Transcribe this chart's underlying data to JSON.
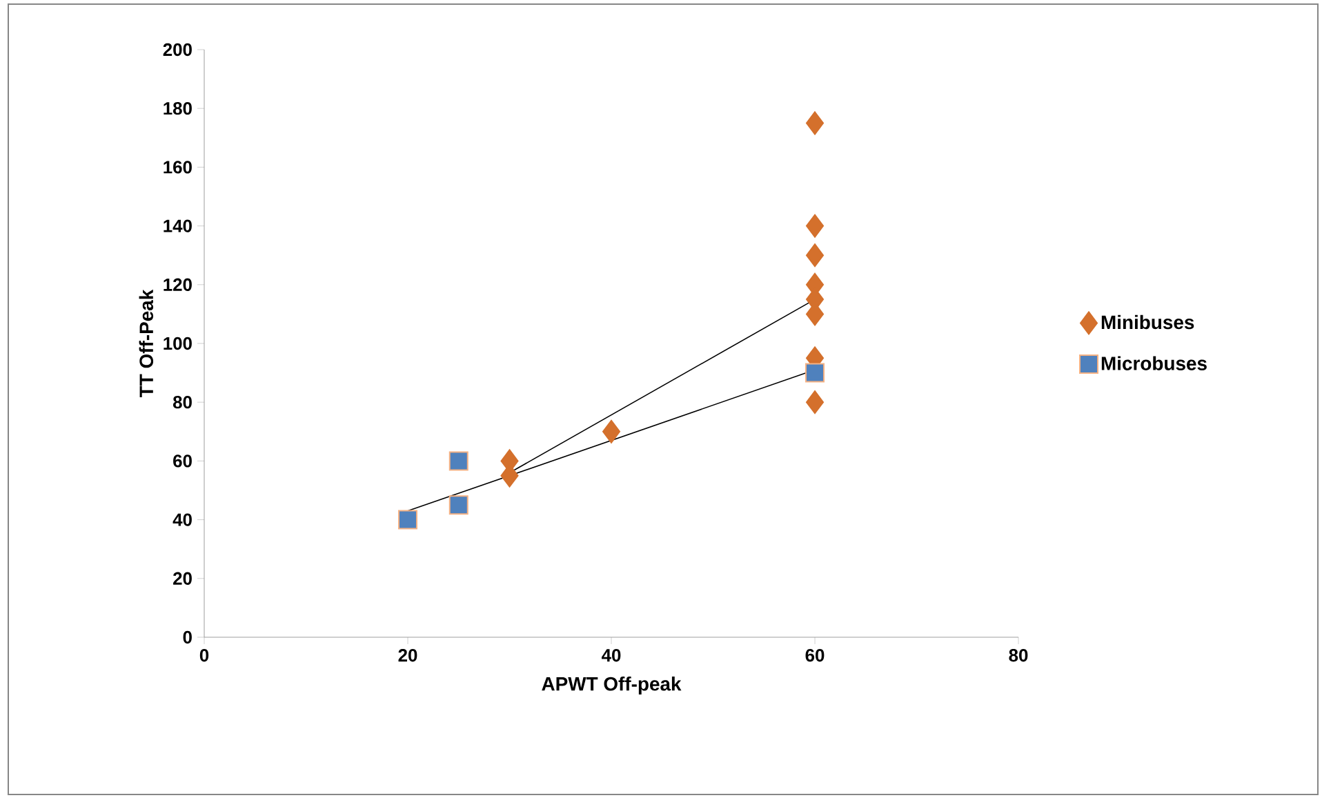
{
  "chart_data": {
    "type": "scatter",
    "xlabel": "APWT Off-peak",
    "ylabel": "TT Off-Peak",
    "xlim": [
      0,
      80
    ],
    "ylim": [
      0,
      200
    ],
    "xticks": [
      0,
      20,
      40,
      60,
      80
    ],
    "yticks": [
      0,
      20,
      40,
      60,
      80,
      100,
      120,
      140,
      160,
      180,
      200
    ],
    "grid": false,
    "legend": "right",
    "series": [
      {
        "name": "Minibuses",
        "color": "#d4702c",
        "marker": "diamond",
        "x": [
          60,
          60,
          60,
          60,
          60,
          60,
          60,
          60,
          40,
          30,
          30
        ],
        "values": [
          175,
          140,
          130,
          120,
          115,
          110,
          95,
          80,
          70,
          60,
          55
        ]
      },
      {
        "name": "Microbuses",
        "color": "#4f81bd",
        "marker": "square",
        "x": [
          20,
          25,
          25,
          60
        ],
        "values": [
          40,
          60,
          45,
          90
        ]
      },
      {
        "type": "line",
        "color": "#000000",
        "marker": "none",
        "x": [
          30,
          60
        ],
        "values": [
          56,
          115
        ]
      },
      {
        "type": "line",
        "color": "#000000",
        "marker": "none",
        "x": [
          20,
          60
        ],
        "values": [
          43,
          91
        ]
      }
    ]
  }
}
